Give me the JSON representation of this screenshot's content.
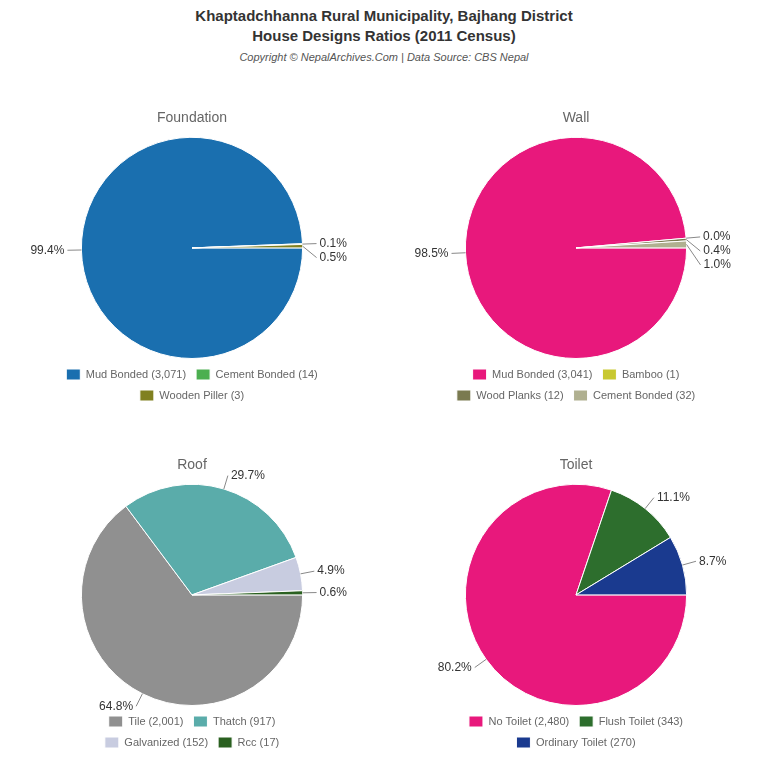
{
  "title": [
    "Khaptadchhanna Rural Municipality, Bajhang District",
    "House Designs Ratios (2011 Census)"
  ],
  "subtitle": "Copyright © NepalArchives.Com | Data Source: CBS Nepal",
  "chart_data": [
    {
      "type": "pie",
      "title": "Foundation",
      "categories": [
        "Mud Bonded (3,071)",
        "Cement Bonded (14)",
        "Wooden Piller (3)"
      ],
      "values": [
        99.4,
        0.1,
        0.5
      ],
      "value_labels": [
        "99.4%",
        "0.1%",
        "0.5%"
      ],
      "colors": [
        "#1a6faf",
        "#4caf50",
        "#808020"
      ],
      "data_labels": true,
      "legend": "bottom"
    },
    {
      "type": "pie",
      "title": "Wall",
      "categories": [
        "Mud Bonded (3,041)",
        "Bamboo (1)",
        "Wood Planks (12)",
        "Cement Bonded (32)"
      ],
      "values": [
        98.5,
        0.0,
        0.4,
        1.0
      ],
      "value_labels": [
        "98.5%",
        "0.0%",
        "0.4%",
        "1.0%"
      ],
      "colors": [
        "#e8187c",
        "#c8c830",
        "#7a7a50",
        "#b0b090"
      ],
      "data_labels": true,
      "legend": "bottom"
    },
    {
      "type": "pie",
      "title": "Roof",
      "categories": [
        "Tile (2,001)",
        "Thatch (917)",
        "Galvanized (152)",
        "Rcc (17)"
      ],
      "values": [
        64.8,
        29.7,
        4.9,
        0.6
      ],
      "value_labels": [
        "64.8%",
        "29.7%",
        "4.9%",
        "0.6%"
      ],
      "colors": [
        "#909090",
        "#5aacaa",
        "#c8cce0",
        "#2a6020"
      ],
      "data_labels": true,
      "legend": "bottom"
    },
    {
      "type": "pie",
      "title": "Toilet",
      "categories": [
        "No Toilet (2,480)",
        "Flush Toilet (343)",
        "Ordinary Toilet (270)"
      ],
      "values": [
        80.2,
        11.1,
        8.7
      ],
      "value_labels": [
        "80.2%",
        "11.1%",
        "8.7%"
      ],
      "colors": [
        "#e8187c",
        "#2d6e2d",
        "#1a3a8f"
      ],
      "data_labels": true,
      "legend": "bottom"
    }
  ]
}
